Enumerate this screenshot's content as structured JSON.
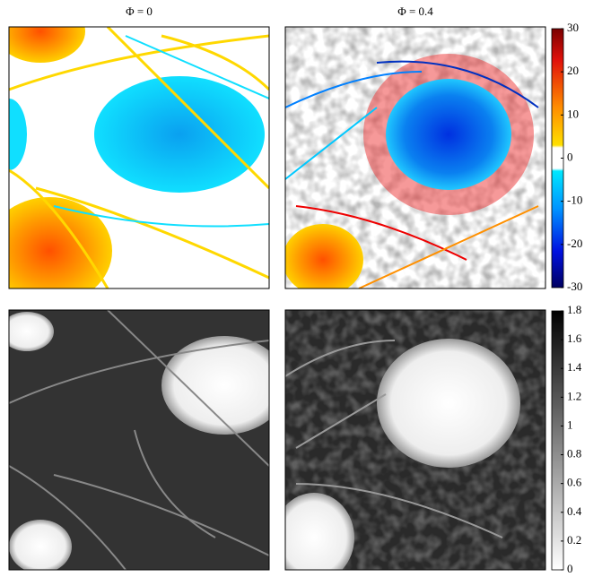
{
  "panel_titles": [
    "Φ = 0",
    "Φ = 0.4"
  ],
  "colorbars": [
    {
      "lim": [
        -30,
        30
      ],
      "ticks": [
        30,
        20,
        10,
        0,
        -10,
        -20,
        -30
      ]
    },
    {
      "lim": [
        0,
        1.8
      ],
      "ticks": [
        1.8,
        1.6,
        1.4,
        1.2,
        1,
        0.8,
        0.6,
        0.4,
        0.2,
        0
      ]
    }
  ]
}
